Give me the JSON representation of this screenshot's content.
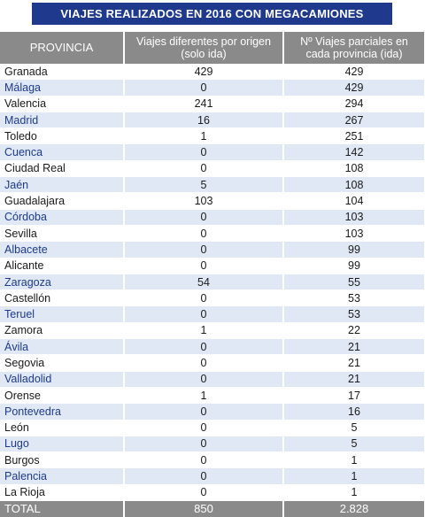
{
  "title": "VIAJES REALIZADOS EN 2016 CON MEGACAMIONES",
  "headers": {
    "provincia": "PROVINCIA",
    "viajes_origen": "Viajes diferentes por origen (solo ida)",
    "viajes_parciales": "Nº Viajes parciales en cada provincia (ida)"
  },
  "rows": [
    {
      "provincia": "Granada",
      "origen": "429",
      "parciales": "429"
    },
    {
      "provincia": "Málaga",
      "origen": "0",
      "parciales": "429"
    },
    {
      "provincia": "Valencia",
      "origen": "241",
      "parciales": "294"
    },
    {
      "provincia": "Madrid",
      "origen": "16",
      "parciales": "267"
    },
    {
      "provincia": "Toledo",
      "origen": "1",
      "parciales": "251"
    },
    {
      "provincia": "Cuenca",
      "origen": "0",
      "parciales": "142"
    },
    {
      "provincia": "Ciudad Real",
      "origen": "0",
      "parciales": "108"
    },
    {
      "provincia": "Jaén",
      "origen": "5",
      "parciales": "108"
    },
    {
      "provincia": "Guadalajara",
      "origen": "103",
      "parciales": "104"
    },
    {
      "provincia": "Córdoba",
      "origen": "0",
      "parciales": "103"
    },
    {
      "provincia": "Sevilla",
      "origen": "0",
      "parciales": "103"
    },
    {
      "provincia": "Albacete",
      "origen": "0",
      "parciales": "99"
    },
    {
      "provincia": "Alicante",
      "origen": "0",
      "parciales": "99"
    },
    {
      "provincia": "Zaragoza",
      "origen": "54",
      "parciales": "55"
    },
    {
      "provincia": "Castellón",
      "origen": "0",
      "parciales": "53"
    },
    {
      "provincia": "Teruel",
      "origen": "0",
      "parciales": "53"
    },
    {
      "provincia": "Zamora",
      "origen": "1",
      "parciales": "22"
    },
    {
      "provincia": "Ávila",
      "origen": "0",
      "parciales": "21"
    },
    {
      "provincia": "Segovia",
      "origen": "0",
      "parciales": "21"
    },
    {
      "provincia": "Valladolid",
      "origen": "0",
      "parciales": "21"
    },
    {
      "provincia": "Orense",
      "origen": "1",
      "parciales": "17"
    },
    {
      "provincia": "Pontevedra",
      "origen": "0",
      "parciales": "16"
    },
    {
      "provincia": "León",
      "origen": "0",
      "parciales": "5"
    },
    {
      "provincia": "Lugo",
      "origen": "0",
      "parciales": "5"
    },
    {
      "provincia": "Burgos",
      "origen": "0",
      "parciales": "1"
    },
    {
      "provincia": "Palencia",
      "origen": "0",
      "parciales": "1"
    },
    {
      "provincia": "La Rioja",
      "origen": "0",
      "parciales": "1"
    }
  ],
  "total": {
    "label": "TOTAL",
    "origen": "850",
    "parciales": "2.828"
  },
  "colors": {
    "title_bg": "#1f3a8c",
    "header_bg": "#8a8a8a",
    "stripe_bg": "#dfe8f4",
    "stripe_text": "#1f3a8c"
  }
}
